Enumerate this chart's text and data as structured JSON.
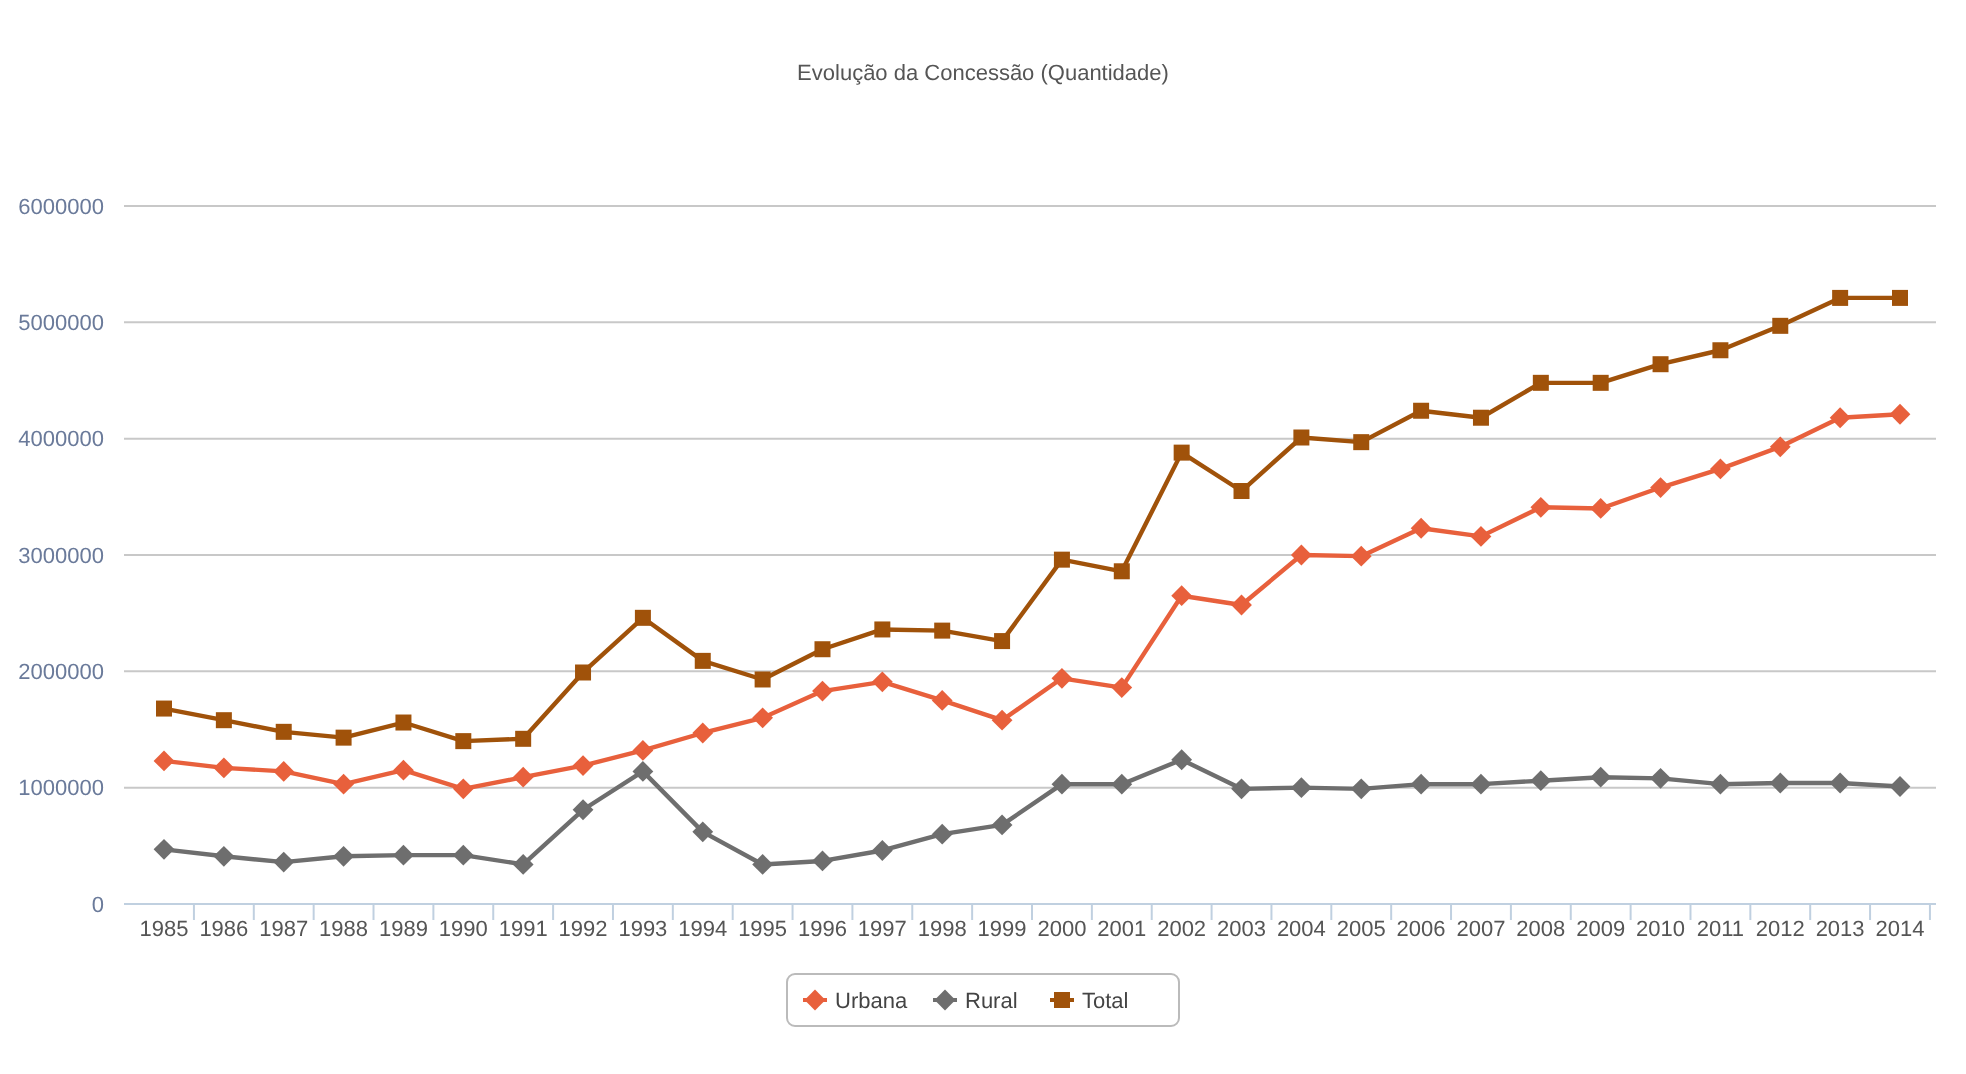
{
  "chart_data": {
    "type": "line",
    "title": "Evolução da Concessão (Quantidade)",
    "categories": [
      "1985",
      "1986",
      "1987",
      "1988",
      "1989",
      "1990",
      "1991",
      "1992",
      "1993",
      "1994",
      "1995",
      "1996",
      "1997",
      "1998",
      "1999",
      "2000",
      "2001",
      "2002",
      "2003",
      "2004",
      "2005",
      "2006",
      "2007",
      "2008",
      "2009",
      "2010",
      "2011",
      "2012",
      "2013",
      "2014"
    ],
    "series": [
      {
        "name": "Urbana",
        "color": "#e8603c",
        "marker": "diamond",
        "values": [
          1230000,
          1170000,
          1140000,
          1030000,
          1150000,
          990000,
          1090000,
          1190000,
          1320000,
          1470000,
          1600000,
          1830000,
          1910000,
          1750000,
          1580000,
          1940000,
          1860000,
          2650000,
          2570000,
          3000000,
          2990000,
          3230000,
          3160000,
          3410000,
          3400000,
          3580000,
          3740000,
          3930000,
          4180000,
          4210000
        ]
      },
      {
        "name": "Rural",
        "color": "#6e6e6e",
        "marker": "diamond",
        "values": [
          470000,
          410000,
          360000,
          410000,
          420000,
          420000,
          340000,
          810000,
          1140000,
          620000,
          340000,
          370000,
          460000,
          600000,
          680000,
          1030000,
          1030000,
          1240000,
          990000,
          1000000,
          990000,
          1030000,
          1030000,
          1060000,
          1090000,
          1080000,
          1030000,
          1040000,
          1040000,
          1010000
        ]
      },
      {
        "name": "Total",
        "color": "#a0520a",
        "marker": "square",
        "values": [
          1680000,
          1580000,
          1480000,
          1430000,
          1560000,
          1400000,
          1420000,
          1990000,
          2460000,
          2090000,
          1930000,
          2190000,
          2360000,
          2350000,
          2260000,
          2960000,
          2860000,
          3880000,
          3550000,
          4010000,
          3970000,
          4240000,
          4180000,
          4480000,
          4480000,
          4640000,
          4760000,
          4970000,
          5210000,
          5210000
        ]
      }
    ],
    "ylim": [
      0,
      6000000
    ],
    "yticks": [
      0,
      1000000,
      2000000,
      3000000,
      4000000,
      5000000,
      6000000
    ],
    "grid": "y",
    "legend": "bottom",
    "line_style": "solid"
  }
}
